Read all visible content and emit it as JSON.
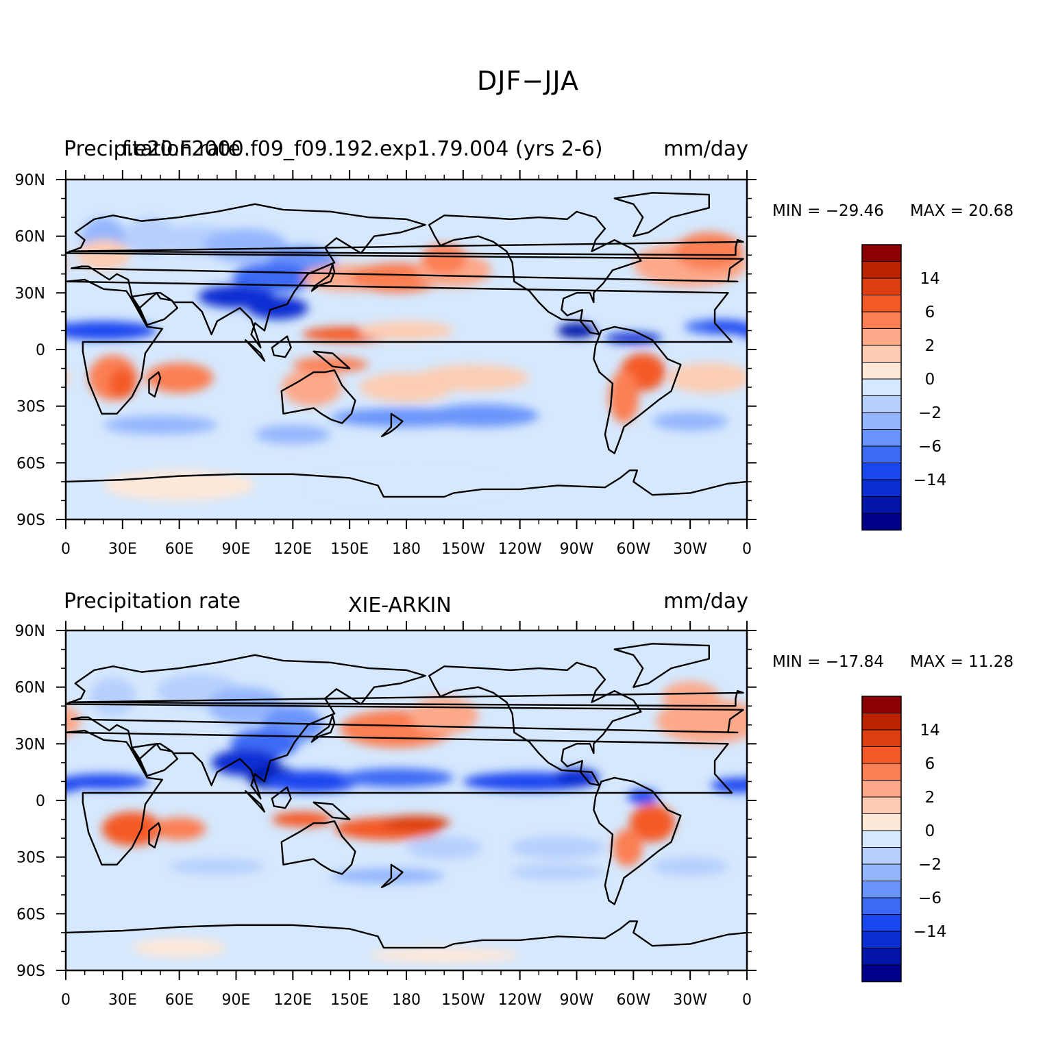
{
  "figure": {
    "title": "DJF−JJA"
  },
  "chart_data": [
    {
      "type": "heatmap",
      "panel": "top",
      "left_title": "Precipitation rate",
      "center_title": "f.e20.F2000.f09_f09.192.exp1.79.004 (yrs 2-6)",
      "units": "mm/day",
      "xlim": [
        0,
        360
      ],
      "ylim": [
        -90,
        90
      ],
      "x_tick_labels": [
        "0",
        "30E",
        "60E",
        "90E",
        "120E",
        "150E",
        "180",
        "150W",
        "120W",
        "90W",
        "60W",
        "30W",
        "0"
      ],
      "y_tick_labels": [
        "90N",
        "60N",
        "30N",
        "0",
        "30S",
        "60S",
        "90S"
      ],
      "min_label": "MIN = −29.46",
      "max_label": "MAX =   20.68",
      "min": -29.46,
      "max": 20.68,
      "colorbar": {
        "colors": [
          "#8b0000",
          "#bb2200",
          "#dd3f10",
          "#f45a28",
          "#fb7f52",
          "#fca98a",
          "#fdcdb3",
          "#fee8d8",
          "#d5e8fd",
          "#b6cffd",
          "#94b6fd",
          "#6a94fb",
          "#3d6af5",
          "#1a46f0",
          "#0a2ed2",
          "#0416a8",
          "#00008b"
        ],
        "labels": [
          "14",
          "6",
          "2",
          "0",
          "−2",
          "−6",
          "−14"
        ]
      }
    },
    {
      "type": "heatmap",
      "panel": "bottom",
      "left_title": "Precipitation rate",
      "center_title": "XIE-ARKIN",
      "units": "mm/day",
      "xlim": [
        0,
        360
      ],
      "ylim": [
        -90,
        90
      ],
      "x_tick_labels": [
        "0",
        "30E",
        "60E",
        "90E",
        "120E",
        "150E",
        "180",
        "150W",
        "120W",
        "90W",
        "60W",
        "30W",
        "0"
      ],
      "y_tick_labels": [
        "90N",
        "60N",
        "30N",
        "0",
        "30S",
        "60S",
        "90S"
      ],
      "min_label": "MIN = −17.84",
      "max_label": "MAX =   11.28",
      "min": -17.84,
      "max": 11.28,
      "colorbar": {
        "colors": [
          "#8b0000",
          "#bb2200",
          "#dd3f10",
          "#f45a28",
          "#fb7f52",
          "#fca98a",
          "#fdcdb3",
          "#fee8d8",
          "#d5e8fd",
          "#b6cffd",
          "#94b6fd",
          "#6a94fb",
          "#3d6af5",
          "#1a46f0",
          "#0a2ed2",
          "#0416a8",
          "#00008b"
        ],
        "labels": [
          "14",
          "6",
          "2",
          "0",
          "−2",
          "−6",
          "−14"
        ]
      }
    }
  ]
}
